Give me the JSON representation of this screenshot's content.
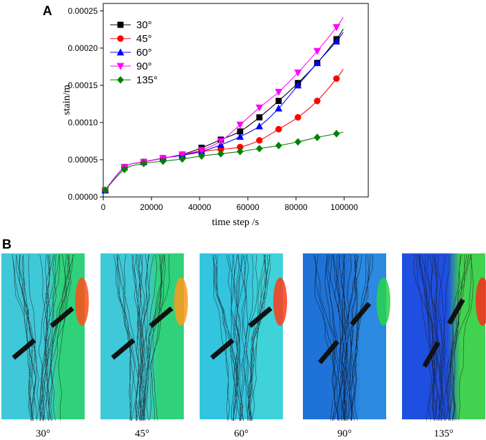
{
  "panels": {
    "a_label": "A",
    "b_label": "B"
  },
  "chart_data": {
    "type": "line",
    "title": "",
    "xlabel": "time step /s",
    "ylabel": "stain/m",
    "xlim": [
      0,
      110000
    ],
    "ylim": [
      0,
      0.00026
    ],
    "xticks": [
      0,
      20000,
      40000,
      60000,
      80000,
      100000
    ],
    "xtick_labels": [
      "0",
      "20000",
      "40000",
      "60000",
      "80000",
      "100000"
    ],
    "yticks": [
      0,
      5e-05,
      0.0001,
      0.00015,
      0.0002,
      0.00025
    ],
    "ytick_labels": [
      "0.00000",
      "0.00005",
      "0.00010",
      "0.00015",
      "0.00020",
      "0.00025"
    ],
    "legend_position": "top-left",
    "x": [
      800,
      8800,
      16800,
      24800,
      32800,
      40800,
      48800,
      56800,
      64800,
      72800,
      80800,
      88800,
      96800
    ],
    "series": [
      {
        "name": "30°",
        "color": "#000000",
        "marker": "square",
        "values": [
          9e-06,
          4e-05,
          4.7e-05,
          5.2e-05,
          5.7e-05,
          6.6e-05,
          7.7e-05,
          8.8e-05,
          0.000107,
          0.000129,
          0.000153,
          0.00018,
          0.000212
        ]
      },
      {
        "name": "45°",
        "color": "#ff0000",
        "marker": "circle",
        "values": [
          9e-06,
          4e-05,
          4.7e-05,
          5.2e-05,
          5.7e-05,
          6.1e-05,
          6.4e-05,
          6.7e-05,
          7.6e-05,
          9.1e-05,
          0.000107,
          0.000129,
          0.000159
        ]
      },
      {
        "name": "60°",
        "color": "#0000ff",
        "marker": "triangle-up",
        "values": [
          9e-06,
          4e-05,
          4.7e-05,
          5.2e-05,
          5.6e-05,
          6.1e-05,
          7e-05,
          8.1e-05,
          9.5e-05,
          0.000119,
          0.00015,
          0.00018,
          0.000209
        ]
      },
      {
        "name": "90°",
        "color": "#ff00ff",
        "marker": "triangle-down",
        "values": [
          9e-06,
          4e-05,
          4.7e-05,
          5.2e-05,
          5.7e-05,
          6.3e-05,
          7.5e-05,
          9.7e-05,
          0.00012,
          0.000141,
          0.000167,
          0.000196,
          0.000228
        ]
      },
      {
        "name": "135°",
        "color": "#008000",
        "marker": "diamond",
        "values": [
          9e-06,
          3.7e-05,
          4.5e-05,
          4.8e-05,
          5.1e-05,
          5.5e-05,
          5.8e-05,
          6.1e-05,
          6.5e-05,
          6.9e-05,
          7.4e-05,
          8e-05,
          8.5e-05
        ]
      }
    ]
  },
  "simulations": [
    {
      "caption": "30°",
      "bg_left": "#3fc8d8",
      "bg_right": "#2fd27a",
      "accent": "#ff4d1a",
      "crack_color": "#1a1a1a"
    },
    {
      "caption": "45°",
      "bg_left": "#3fc8d8",
      "bg_right": "#2fd27a",
      "accent": "#ff9a1a",
      "crack_color": "#1a1a1a"
    },
    {
      "caption": "60°",
      "bg_left": "#33c4e0",
      "bg_right": "#3fd2d8",
      "accent": "#ff3b1a",
      "crack_color": "#1a1a1a"
    },
    {
      "caption": "90°",
      "bg_left": "#1f73d8",
      "bg_right": "#2c8ae0",
      "accent": "#29d24a",
      "crack_color": "#0a0a0a"
    },
    {
      "caption": "135°",
      "bg_left": "#1f4fe0",
      "bg_right": "#41d24f",
      "accent": "#ff2a1a",
      "crack_color": "#1a1a1a"
    }
  ]
}
